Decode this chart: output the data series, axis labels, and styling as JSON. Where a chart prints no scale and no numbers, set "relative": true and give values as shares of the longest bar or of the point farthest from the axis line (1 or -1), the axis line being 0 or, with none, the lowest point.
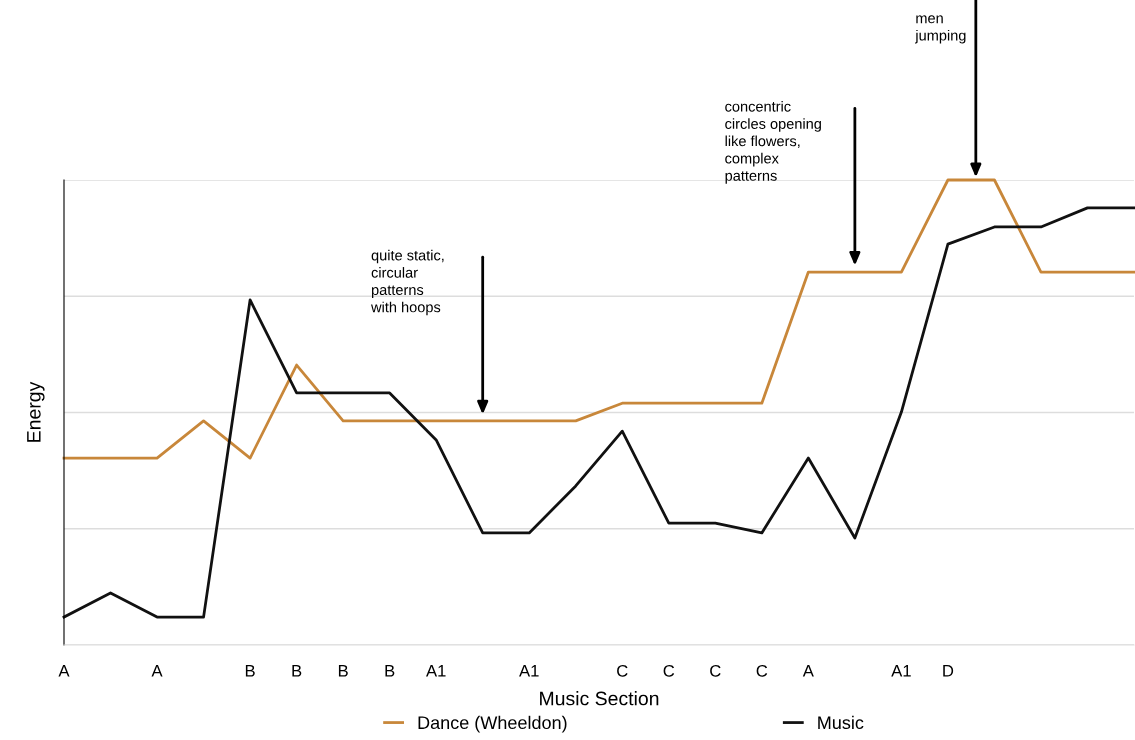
{
  "chart_data": {
    "type": "line",
    "relative": true,
    "xlabel": "Music Section",
    "ylabel": "Energy",
    "categories": [
      "A",
      null,
      "A",
      null,
      "B",
      "B",
      "B",
      "B",
      "A1",
      null,
      "A1",
      null,
      "C",
      "C",
      "C",
      "C",
      "A",
      null,
      "A1",
      "D",
      null,
      null,
      null,
      null
    ],
    "series": [
      {
        "name": "Dance (Wheeldon)",
        "color": "#c8873a",
        "values": [
          0.402,
          0.402,
          0.402,
          0.482,
          0.402,
          0.602,
          0.482,
          0.482,
          0.482,
          0.482,
          0.482,
          0.482,
          0.52,
          0.52,
          0.52,
          0.52,
          0.802,
          0.802,
          0.802,
          1.0,
          1.0,
          0.802,
          0.802,
          0.802
        ]
      },
      {
        "name": "Music",
        "color": "#111111",
        "values": [
          0.06,
          0.112,
          0.06,
          0.06,
          0.742,
          0.542,
          0.542,
          0.542,
          0.441,
          0.241,
          0.241,
          0.342,
          0.46,
          0.262,
          0.262,
          0.241,
          0.402,
          0.23,
          0.501,
          0.862,
          0.899,
          0.899,
          0.94,
          0.94
        ]
      }
    ],
    "annotations": [
      "quite static,\ncircular\npatterns\nwith hoops",
      "concentric\ncircles opening\nlike flowers,\ncomplex\npatterns",
      "men\njumping"
    ],
    "grid": "y",
    "legend": "bottom",
    "marker": "none",
    "line_style": "solid"
  }
}
